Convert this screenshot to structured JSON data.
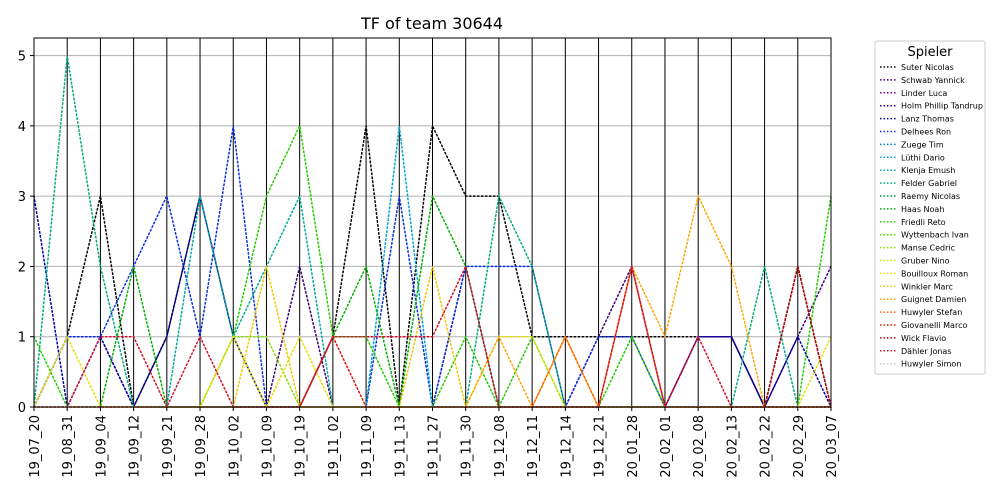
{
  "chart_data": {
    "type": "line",
    "title": "TF of team 30644",
    "xlabel": "",
    "ylabel": "",
    "ylim": [
      0,
      5.25
    ],
    "y_ticks": [
      "0",
      "1",
      "2",
      "3",
      "4",
      "5"
    ],
    "grid": "horizontal",
    "line_style": "dotted",
    "legend_title": "Spieler",
    "legend_position": "outside-right",
    "categories": [
      "19_07_20",
      "19_08_31",
      "19_09_04",
      "19_09_12",
      "19_09_21",
      "19_09_28",
      "19_10_02",
      "19_10_09",
      "19_10_19",
      "19_11_02",
      "19_11_09",
      "19_11_13",
      "19_11_27",
      "19_11_30",
      "19_12_08",
      "19_12_11",
      "19_12_14",
      "19_12_21",
      "20_01_28",
      "20_02_01",
      "20_02_08",
      "20_02_13",
      "20_02_22",
      "20_02_29",
      "20_03_07"
    ],
    "series": [
      {
        "name": "Suter Nicolas",
        "color": "#000000",
        "values": [
          0,
          1,
          3,
          0,
          1,
          3,
          1,
          0,
          0,
          1,
          4,
          0,
          4,
          3,
          3,
          1,
          1,
          1,
          1,
          1,
          1,
          1,
          0,
          2,
          0
        ]
      },
      {
        "name": "Schwab Yannick",
        "color": "#3a0075",
        "values": [
          0,
          1,
          1,
          0,
          0,
          0,
          0,
          0,
          2,
          0,
          0,
          0,
          0,
          2,
          0,
          0,
          0,
          1,
          2,
          0,
          1,
          1,
          0,
          1,
          2
        ]
      },
      {
        "name": "Linder Luca",
        "color": "#6b0085",
        "values": [
          0,
          0,
          0,
          0,
          0,
          0,
          0,
          0,
          0,
          0,
          0,
          0,
          0,
          0,
          0,
          0,
          0,
          0,
          0,
          0,
          0,
          0,
          0,
          0,
          0
        ]
      },
      {
        "name": "Holm Phillip Tandrup",
        "color": "#2a0090",
        "values": [
          0,
          0,
          0,
          0,
          0,
          0,
          0,
          0,
          0,
          0,
          0,
          0,
          0,
          0,
          0,
          0,
          0,
          0,
          0,
          0,
          0,
          0,
          0,
          0,
          0
        ]
      },
      {
        "name": "Lanz Thomas",
        "color": "#0000a8",
        "values": [
          3,
          0,
          1,
          0,
          1,
          3,
          1,
          0,
          0,
          0,
          0,
          0,
          0,
          0,
          0,
          0,
          0,
          0,
          0,
          0,
          1,
          1,
          0,
          1,
          0
        ]
      },
      {
        "name": "Delhees Ron",
        "color": "#0a2ee0",
        "values": [
          0,
          1,
          1,
          2,
          3,
          1,
          4,
          0,
          0,
          0,
          0,
          3,
          0,
          2,
          2,
          2,
          0,
          1,
          1,
          0,
          0,
          0,
          0,
          0,
          0
        ]
      },
      {
        "name": "Zuege Tim",
        "color": "#0078c8",
        "values": [
          0,
          0,
          0,
          0,
          0,
          0,
          0,
          0,
          0,
          0,
          0,
          0,
          0,
          0,
          0,
          0,
          0,
          0,
          0,
          0,
          0,
          0,
          0,
          0,
          0
        ]
      },
      {
        "name": "Lüthi Dario",
        "color": "#00a3d0",
        "values": [
          0,
          0,
          0,
          0,
          0,
          0,
          0,
          0,
          0,
          0,
          0,
          4,
          0,
          0,
          0,
          0,
          0,
          0,
          0,
          0,
          0,
          0,
          0,
          0,
          0
        ]
      },
      {
        "name": "Klenja Emush",
        "color": "#00aaa0",
        "values": [
          0,
          0,
          0,
          0,
          0,
          3,
          1,
          2,
          3,
          0,
          0,
          0,
          0,
          0,
          0,
          0,
          0,
          0,
          0,
          0,
          0,
          0,
          0,
          0,
          0
        ]
      },
      {
        "name": "Felder Gabriel",
        "color": "#00aa80",
        "values": [
          0,
          5,
          2,
          0,
          0,
          0,
          0,
          0,
          0,
          0,
          0,
          0,
          0,
          0,
          3,
          2,
          0,
          0,
          0,
          0,
          0,
          0,
          2,
          0,
          0
        ]
      },
      {
        "name": "Raemy Nicolas",
        "color": "#009a3a",
        "values": [
          0,
          0,
          0,
          0,
          0,
          0,
          0,
          0,
          0,
          0,
          0,
          0,
          0,
          0,
          0,
          0,
          0,
          0,
          0,
          0,
          0,
          0,
          0,
          0,
          0
        ]
      },
      {
        "name": "Haas Noah",
        "color": "#00b000",
        "values": [
          0,
          0,
          0,
          2,
          0,
          0,
          0,
          0,
          0,
          1,
          2,
          0,
          3,
          2,
          0,
          0,
          0,
          0,
          0,
          0,
          0,
          0,
          0,
          0,
          0
        ]
      },
      {
        "name": "Friedli Reto",
        "color": "#22cc00",
        "values": [
          1,
          0,
          0,
          0,
          0,
          0,
          1,
          3,
          4,
          1,
          1,
          0,
          0,
          1,
          0,
          1,
          0,
          0,
          1,
          0,
          0,
          0,
          0,
          0,
          3
        ]
      },
      {
        "name": "Wyttenbach Ivan",
        "color": "#55dd00",
        "values": [
          0,
          0,
          0,
          0,
          0,
          0,
          0,
          0,
          0,
          0,
          0,
          0,
          0,
          0,
          0,
          0,
          0,
          0,
          0,
          0,
          0,
          0,
          0,
          0,
          0
        ]
      },
      {
        "name": "Manse Cedric",
        "color": "#88e000",
        "values": [
          0,
          0,
          0,
          0,
          0,
          0,
          1,
          1,
          0,
          0,
          0,
          0,
          0,
          0,
          0,
          0,
          0,
          0,
          0,
          0,
          0,
          0,
          0,
          0,
          0
        ]
      },
      {
        "name": "Gruber Nino",
        "color": "#c8e800",
        "values": [
          0,
          0,
          0,
          0,
          0,
          0,
          0,
          0,
          0,
          0,
          0,
          0,
          0,
          0,
          0,
          0,
          0,
          0,
          0,
          0,
          0,
          0,
          0,
          0,
          0
        ]
      },
      {
        "name": "Bouilloux Roman",
        "color": "#e8e000",
        "values": [
          0,
          1,
          0,
          0,
          0,
          0,
          1,
          0,
          1,
          0,
          0,
          0,
          0,
          0,
          1,
          1,
          0,
          0,
          0,
          0,
          0,
          0,
          0,
          0,
          1
        ]
      },
      {
        "name": "Winkler Marc",
        "color": "#f0c800",
        "values": [
          0,
          0,
          0,
          0,
          0,
          0,
          0,
          2,
          0,
          0,
          0,
          0,
          2,
          0,
          0,
          0,
          0,
          0,
          0,
          0,
          0,
          0,
          0,
          0,
          0
        ]
      },
      {
        "name": "Guignet Damien",
        "color": "#ffa500",
        "values": [
          0,
          0,
          0,
          0,
          0,
          0,
          0,
          0,
          0,
          0,
          0,
          0,
          0,
          0,
          1,
          0,
          1,
          0,
          2,
          1,
          3,
          2,
          0,
          0,
          0
        ]
      },
      {
        "name": "Huwyler Stefan",
        "color": "#ff6000",
        "values": [
          0,
          0,
          0,
          0,
          0,
          0,
          0,
          0,
          0,
          0,
          0,
          0,
          0,
          0,
          0,
          0,
          1,
          0,
          2,
          0,
          0,
          0,
          0,
          0,
          0
        ]
      },
      {
        "name": "Giovanelli Marco",
        "color": "#e81000",
        "values": [
          0,
          0,
          0,
          0,
          0,
          0,
          0,
          0,
          0,
          1,
          0,
          0,
          0,
          0,
          0,
          0,
          0,
          0,
          0,
          0,
          0,
          0,
          0,
          0,
          0
        ]
      },
      {
        "name": "Wick Flavio",
        "color": "#c00000",
        "values": [
          0,
          0,
          0,
          0,
          0,
          0,
          0,
          0,
          0,
          0,
          0,
          0,
          0,
          0,
          0,
          0,
          0,
          0,
          0,
          0,
          0,
          0,
          0,
          2,
          0
        ]
      },
      {
        "name": "Dähler Jonas",
        "color": "#d01030",
        "values": [
          0,
          0,
          1,
          1,
          0,
          1,
          0,
          0,
          0,
          1,
          1,
          1,
          1,
          2,
          0,
          0,
          0,
          0,
          2,
          0,
          1,
          0,
          0,
          0,
          0
        ]
      },
      {
        "name": "Huwyler Simon",
        "color": "#cccccc",
        "values": [
          0,
          0,
          0,
          0,
          0,
          0,
          0,
          0,
          0,
          0,
          0,
          0,
          0,
          0,
          0,
          0,
          0,
          0,
          0,
          0,
          0,
          0,
          0,
          0,
          0
        ]
      }
    ]
  }
}
